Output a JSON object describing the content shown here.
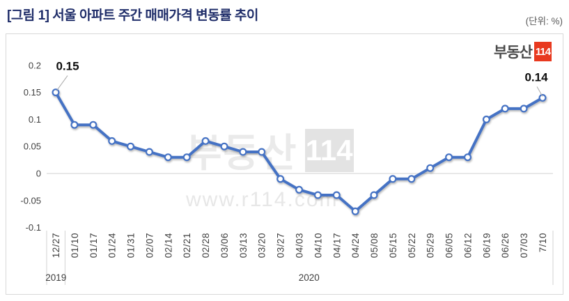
{
  "header": {
    "title": "[그림 1] 서울 아파트 주간 매매가격 변동률 추이",
    "unit_label": "(단위: %)",
    "title_color": "#1f2d69"
  },
  "brand": {
    "logo_text": "부동산",
    "logo_number": "114",
    "logo_red": "#e8391f"
  },
  "watermark": {
    "text": "부동산",
    "number": "114",
    "url": "www.r114.com"
  },
  "chart_data": {
    "type": "line",
    "title": "[그림 1] 서울 아파트 주간 매매가격 변동률 추이",
    "unit": "%",
    "categories": [
      "12/27",
      "01/10",
      "01/17",
      "01/24",
      "01/31",
      "02/07",
      "02/14",
      "02/21",
      "02/28",
      "03/06",
      "03/13",
      "03/20",
      "03/27",
      "04/03",
      "04/10",
      "04/17",
      "04/24",
      "05/08",
      "05/15",
      "05/22",
      "05/29",
      "06/05",
      "06/12",
      "06/19",
      "06/26",
      "07/03",
      "7/10"
    ],
    "values": [
      0.15,
      0.09,
      0.09,
      0.06,
      0.05,
      0.04,
      0.03,
      0.03,
      0.06,
      0.05,
      0.04,
      0.04,
      -0.01,
      -0.03,
      -0.04,
      -0.04,
      -0.07,
      -0.04,
      -0.01,
      -0.01,
      0.01,
      0.03,
      0.03,
      0.1,
      0.12,
      0.12,
      0.14
    ],
    "year_groups": [
      {
        "label": "2019",
        "start": 0,
        "end": 0
      },
      {
        "label": "2020",
        "start": 1,
        "end": 26
      }
    ],
    "y_ticks": [
      {
        "label": "0.2",
        "value": 0.2
      },
      {
        "label": "0.15",
        "value": 0.15
      },
      {
        "label": "0.1",
        "value": 0.1
      },
      {
        "label": "0.05",
        "value": 0.05
      },
      {
        "label": "0",
        "value": 0
      },
      {
        "label": "-0.05",
        "value": -0.05
      },
      {
        "label": "-0.1",
        "value": -0.1
      }
    ],
    "ylim": [
      -0.1,
      0.2
    ],
    "grid": "zero-line-only",
    "point_labels": [
      {
        "index": 0,
        "text": "0.15"
      },
      {
        "index": 26,
        "text": "0.14"
      }
    ],
    "line_color": "#4472c4",
    "marker_fill": "#ffffff",
    "grid_color": "#d9d9d9",
    "axis_text_color": "#3f3f3f"
  }
}
